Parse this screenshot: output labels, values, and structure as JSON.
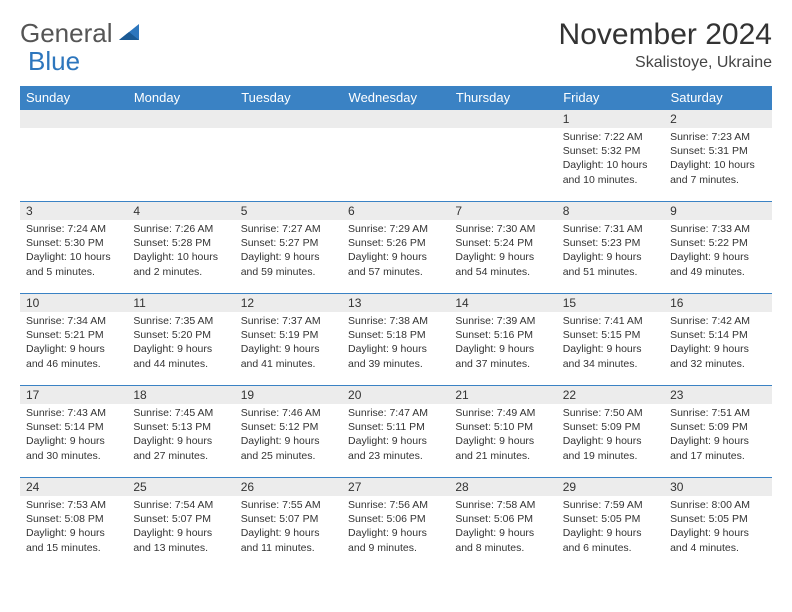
{
  "logo": {
    "name_a": "General",
    "name_b": "Blue"
  },
  "title": "November 2024",
  "location": "Skalistoye, Ukraine",
  "colors": {
    "header_bg": "#3a82c4",
    "header_text": "#ffffff",
    "daynum_bg": "#ececec",
    "divider": "#3a82c4",
    "logo_blue": "#2d76bd"
  },
  "day_labels": [
    "Sunday",
    "Monday",
    "Tuesday",
    "Wednesday",
    "Thursday",
    "Friday",
    "Saturday"
  ],
  "weeks": [
    [
      null,
      null,
      null,
      null,
      null,
      {
        "n": "1",
        "sr": "7:22 AM",
        "ss": "5:32 PM",
        "dl": "10 hours and 10 minutes."
      },
      {
        "n": "2",
        "sr": "7:23 AM",
        "ss": "5:31 PM",
        "dl": "10 hours and 7 minutes."
      }
    ],
    [
      {
        "n": "3",
        "sr": "7:24 AM",
        "ss": "5:30 PM",
        "dl": "10 hours and 5 minutes."
      },
      {
        "n": "4",
        "sr": "7:26 AM",
        "ss": "5:28 PM",
        "dl": "10 hours and 2 minutes."
      },
      {
        "n": "5",
        "sr": "7:27 AM",
        "ss": "5:27 PM",
        "dl": "9 hours and 59 minutes."
      },
      {
        "n": "6",
        "sr": "7:29 AM",
        "ss": "5:26 PM",
        "dl": "9 hours and 57 minutes."
      },
      {
        "n": "7",
        "sr": "7:30 AM",
        "ss": "5:24 PM",
        "dl": "9 hours and 54 minutes."
      },
      {
        "n": "8",
        "sr": "7:31 AM",
        "ss": "5:23 PM",
        "dl": "9 hours and 51 minutes."
      },
      {
        "n": "9",
        "sr": "7:33 AM",
        "ss": "5:22 PM",
        "dl": "9 hours and 49 minutes."
      }
    ],
    [
      {
        "n": "10",
        "sr": "7:34 AM",
        "ss": "5:21 PM",
        "dl": "9 hours and 46 minutes."
      },
      {
        "n": "11",
        "sr": "7:35 AM",
        "ss": "5:20 PM",
        "dl": "9 hours and 44 minutes."
      },
      {
        "n": "12",
        "sr": "7:37 AM",
        "ss": "5:19 PM",
        "dl": "9 hours and 41 minutes."
      },
      {
        "n": "13",
        "sr": "7:38 AM",
        "ss": "5:18 PM",
        "dl": "9 hours and 39 minutes."
      },
      {
        "n": "14",
        "sr": "7:39 AM",
        "ss": "5:16 PM",
        "dl": "9 hours and 37 minutes."
      },
      {
        "n": "15",
        "sr": "7:41 AM",
        "ss": "5:15 PM",
        "dl": "9 hours and 34 minutes."
      },
      {
        "n": "16",
        "sr": "7:42 AM",
        "ss": "5:14 PM",
        "dl": "9 hours and 32 minutes."
      }
    ],
    [
      {
        "n": "17",
        "sr": "7:43 AM",
        "ss": "5:14 PM",
        "dl": "9 hours and 30 minutes."
      },
      {
        "n": "18",
        "sr": "7:45 AM",
        "ss": "5:13 PM",
        "dl": "9 hours and 27 minutes."
      },
      {
        "n": "19",
        "sr": "7:46 AM",
        "ss": "5:12 PM",
        "dl": "9 hours and 25 minutes."
      },
      {
        "n": "20",
        "sr": "7:47 AM",
        "ss": "5:11 PM",
        "dl": "9 hours and 23 minutes."
      },
      {
        "n": "21",
        "sr": "7:49 AM",
        "ss": "5:10 PM",
        "dl": "9 hours and 21 minutes."
      },
      {
        "n": "22",
        "sr": "7:50 AM",
        "ss": "5:09 PM",
        "dl": "9 hours and 19 minutes."
      },
      {
        "n": "23",
        "sr": "7:51 AM",
        "ss": "5:09 PM",
        "dl": "9 hours and 17 minutes."
      }
    ],
    [
      {
        "n": "24",
        "sr": "7:53 AM",
        "ss": "5:08 PM",
        "dl": "9 hours and 15 minutes."
      },
      {
        "n": "25",
        "sr": "7:54 AM",
        "ss": "5:07 PM",
        "dl": "9 hours and 13 minutes."
      },
      {
        "n": "26",
        "sr": "7:55 AM",
        "ss": "5:07 PM",
        "dl": "9 hours and 11 minutes."
      },
      {
        "n": "27",
        "sr": "7:56 AM",
        "ss": "5:06 PM",
        "dl": "9 hours and 9 minutes."
      },
      {
        "n": "28",
        "sr": "7:58 AM",
        "ss": "5:06 PM",
        "dl": "9 hours and 8 minutes."
      },
      {
        "n": "29",
        "sr": "7:59 AM",
        "ss": "5:05 PM",
        "dl": "9 hours and 6 minutes."
      },
      {
        "n": "30",
        "sr": "8:00 AM",
        "ss": "5:05 PM",
        "dl": "9 hours and 4 minutes."
      }
    ]
  ],
  "labels": {
    "sunrise": "Sunrise: ",
    "sunset": "Sunset: ",
    "daylight": "Daylight: "
  }
}
